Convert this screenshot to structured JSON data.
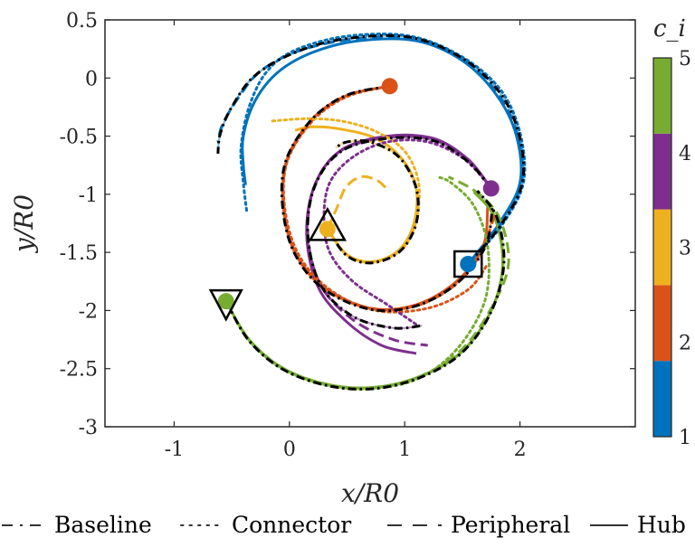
{
  "chart_data": {
    "type": "line",
    "xlabel": "x/R0",
    "ylabel": "y/R0",
    "xlim": [
      -1.6,
      3.0
    ],
    "ylim": [
      -3.0,
      0.5
    ],
    "x_ticks": [
      -1,
      0,
      1,
      2
    ],
    "y_ticks": [
      0.5,
      0,
      -0.5,
      -1,
      -1.5,
      -2,
      -2.5,
      -3
    ],
    "x_tick_labels": [
      "-1",
      "0",
      "1",
      "2"
    ],
    "y_tick_labels": [
      "0.5",
      "0",
      "-0.5",
      "-1",
      "-1.5",
      "-2",
      "-2.5",
      "-3"
    ],
    "colorbar": {
      "title": "c_i",
      "ticks": [
        1,
        2,
        3,
        4,
        5
      ],
      "tick_labels": [
        "1",
        "2",
        "3",
        "4",
        "5"
      ],
      "colors": [
        "#0072BD",
        "#D95319",
        "#EDB120",
        "#7E2F8E",
        "#77AC30"
      ]
    },
    "legend": {
      "placement": "bottom",
      "entries": [
        {
          "label": "Baseline",
          "style": "dashdot"
        },
        {
          "label": "Connector",
          "style": "dotted"
        },
        {
          "label": "Peripheral",
          "style": "dashed"
        },
        {
          "label": "Hub",
          "style": "solid"
        }
      ]
    },
    "start_markers": [
      {
        "c": 1,
        "x": 1.55,
        "y": -1.6
      },
      {
        "c": 2,
        "x": 0.87,
        "y": -0.07
      },
      {
        "c": 3,
        "x": 0.33,
        "y": -1.3
      },
      {
        "c": 4,
        "x": 1.75,
        "y": -0.95
      },
      {
        "c": 5,
        "x": -0.55,
        "y": -1.92
      }
    ],
    "reference_markers": [
      {
        "shape": "square",
        "x": 1.55,
        "y": -1.6
      },
      {
        "shape": "triangle-up",
        "x": 0.33,
        "y": -1.3
      },
      {
        "shape": "triangle-down",
        "x": -0.55,
        "y": -1.92
      }
    ],
    "series": [
      {
        "c": 1,
        "style": "solid",
        "points": [
          [
            1.55,
            -1.6
          ],
          [
            1.82,
            -1.25
          ],
          [
            2.0,
            -0.9
          ],
          [
            1.97,
            -0.5
          ],
          [
            1.8,
            -0.15
          ],
          [
            1.5,
            0.15
          ],
          [
            1.1,
            0.32
          ],
          [
            0.6,
            0.32
          ],
          [
            0.2,
            0.22
          ],
          [
            -0.1,
            0.05
          ],
          [
            -0.3,
            -0.2
          ],
          [
            -0.4,
            -0.5
          ],
          [
            -0.4,
            -0.75
          ],
          [
            -0.38,
            -0.92
          ]
        ]
      },
      {
        "c": 1,
        "style": "dashdot",
        "points": [
          [
            1.55,
            -1.6
          ],
          [
            1.83,
            -1.27
          ],
          [
            2.02,
            -0.9
          ],
          [
            1.99,
            -0.48
          ],
          [
            1.82,
            -0.12
          ],
          [
            1.5,
            0.17
          ],
          [
            1.05,
            0.35
          ],
          [
            0.5,
            0.34
          ],
          [
            0.05,
            0.22
          ],
          [
            -0.3,
            0.02
          ],
          [
            -0.5,
            -0.25
          ],
          [
            -0.6,
            -0.48
          ],
          [
            -0.62,
            -0.65
          ]
        ]
      },
      {
        "c": 1,
        "style": "dotted",
        "points": [
          [
            1.55,
            -1.6
          ],
          [
            1.84,
            -1.27
          ],
          [
            2.03,
            -0.9
          ],
          [
            2.0,
            -0.47
          ],
          [
            1.83,
            -0.1
          ],
          [
            1.5,
            0.18
          ],
          [
            1.05,
            0.36
          ],
          [
            0.5,
            0.36
          ],
          [
            0.05,
            0.24
          ],
          [
            -0.2,
            0.05
          ],
          [
            -0.35,
            -0.25
          ],
          [
            -0.42,
            -0.6
          ],
          [
            -0.4,
            -0.9
          ],
          [
            -0.37,
            -1.15
          ]
        ]
      },
      {
        "c": 1,
        "style": "dashed",
        "points": [
          [
            1.55,
            -1.6
          ],
          [
            1.83,
            -1.26
          ],
          [
            2.01,
            -0.9
          ],
          [
            1.98,
            -0.5
          ],
          [
            1.81,
            -0.14
          ],
          [
            1.5,
            0.16
          ],
          [
            1.1,
            0.33
          ],
          [
            0.6,
            0.34
          ],
          [
            0.1,
            0.24
          ],
          [
            -0.25,
            0.06
          ],
          [
            -0.45,
            -0.18
          ],
          [
            -0.58,
            -0.4
          ],
          [
            -0.62,
            -0.55
          ]
        ]
      },
      {
        "c": 2,
        "style": "solid",
        "points": [
          [
            0.87,
            -0.07
          ],
          [
            0.5,
            -0.15
          ],
          [
            0.2,
            -0.35
          ],
          [
            -0.02,
            -0.7
          ],
          [
            -0.05,
            -1.1
          ],
          [
            0.05,
            -1.5
          ],
          [
            0.3,
            -1.8
          ],
          [
            0.7,
            -1.98
          ],
          [
            1.1,
            -1.95
          ],
          [
            1.45,
            -1.75
          ],
          [
            1.68,
            -1.45
          ],
          [
            1.72,
            -1.1
          ]
        ]
      },
      {
        "c": 2,
        "style": "dashdot",
        "points": [
          [
            0.87,
            -0.07
          ],
          [
            0.49,
            -0.15
          ],
          [
            0.19,
            -0.36
          ],
          [
            -0.03,
            -0.71
          ],
          [
            -0.06,
            -1.1
          ],
          [
            0.04,
            -1.5
          ],
          [
            0.29,
            -1.81
          ],
          [
            0.7,
            -1.99
          ],
          [
            1.1,
            -1.96
          ],
          [
            1.46,
            -1.76
          ],
          [
            1.7,
            -1.45
          ],
          [
            1.76,
            -1.12
          ]
        ]
      },
      {
        "c": 2,
        "style": "dotted",
        "points": [
          [
            0.87,
            -0.07
          ],
          [
            0.5,
            -0.16
          ],
          [
            0.2,
            -0.37
          ],
          [
            -0.02,
            -0.72
          ],
          [
            -0.04,
            -1.12
          ],
          [
            0.08,
            -1.52
          ],
          [
            0.35,
            -1.82
          ],
          [
            0.75,
            -2.0
          ],
          [
            1.2,
            -1.98
          ],
          [
            1.55,
            -1.82
          ],
          [
            1.72,
            -1.6
          ]
        ]
      },
      {
        "c": 2,
        "style": "dashed",
        "points": [
          [
            0.87,
            -0.07
          ],
          [
            0.5,
            -0.15
          ],
          [
            0.2,
            -0.36
          ],
          [
            -0.02,
            -0.71
          ],
          [
            -0.05,
            -1.11
          ],
          [
            0.05,
            -1.5
          ],
          [
            0.3,
            -1.8
          ],
          [
            0.7,
            -1.98
          ],
          [
            1.1,
            -1.96
          ],
          [
            1.45,
            -1.77
          ],
          [
            1.66,
            -1.5
          ],
          [
            1.78,
            -1.18
          ]
        ]
      },
      {
        "c": 3,
        "style": "solid",
        "points": [
          [
            0.33,
            -1.3
          ],
          [
            0.5,
            -1.52
          ],
          [
            0.72,
            -1.58
          ],
          [
            0.95,
            -1.48
          ],
          [
            1.08,
            -1.25
          ],
          [
            1.1,
            -0.95
          ],
          [
            0.98,
            -0.7
          ],
          [
            0.75,
            -0.52
          ],
          [
            0.45,
            -0.44
          ],
          [
            0.2,
            -0.42
          ],
          [
            0.05,
            -0.45
          ]
        ]
      },
      {
        "c": 3,
        "style": "dashdot",
        "points": [
          [
            0.33,
            -1.3
          ],
          [
            0.5,
            -1.53
          ],
          [
            0.72,
            -1.59
          ],
          [
            0.96,
            -1.49
          ],
          [
            1.1,
            -1.25
          ],
          [
            1.1,
            -0.95
          ],
          [
            0.95,
            -0.68
          ],
          [
            0.7,
            -0.55
          ],
          [
            0.5,
            -0.55
          ],
          [
            0.4,
            -0.6
          ]
        ]
      },
      {
        "c": 3,
        "style": "dotted",
        "points": [
          [
            0.33,
            -1.3
          ],
          [
            0.5,
            -1.52
          ],
          [
            0.73,
            -1.58
          ],
          [
            0.98,
            -1.47
          ],
          [
            1.1,
            -1.22
          ],
          [
            1.12,
            -0.9
          ],
          [
            1.0,
            -0.63
          ],
          [
            0.75,
            -0.46
          ],
          [
            0.45,
            -0.37
          ],
          [
            0.15,
            -0.35
          ],
          [
            -0.15,
            -0.37
          ]
        ]
      },
      {
        "c": 3,
        "style": "dashed",
        "points": [
          [
            0.33,
            -1.3
          ],
          [
            0.41,
            -1.12
          ],
          [
            0.49,
            -0.94
          ],
          [
            0.62,
            -0.85
          ],
          [
            0.76,
            -0.88
          ],
          [
            0.85,
            -0.96
          ]
        ]
      },
      {
        "c": 4,
        "style": "solid",
        "points": [
          [
            1.75,
            -0.95
          ],
          [
            1.55,
            -0.7
          ],
          [
            1.25,
            -0.52
          ],
          [
            0.85,
            -0.5
          ],
          [
            0.45,
            -0.62
          ],
          [
            0.22,
            -0.92
          ],
          [
            0.15,
            -1.35
          ],
          [
            0.25,
            -1.8
          ],
          [
            0.5,
            -2.1
          ],
          [
            0.8,
            -2.3
          ],
          [
            1.1,
            -2.37
          ]
        ]
      },
      {
        "c": 4,
        "style": "dashdot",
        "points": [
          [
            1.75,
            -0.95
          ],
          [
            1.55,
            -0.72
          ],
          [
            1.25,
            -0.54
          ],
          [
            0.85,
            -0.52
          ],
          [
            0.45,
            -0.63
          ],
          [
            0.22,
            -0.93
          ],
          [
            0.16,
            -1.35
          ],
          [
            0.27,
            -1.78
          ],
          [
            0.55,
            -2.05
          ],
          [
            0.9,
            -2.15
          ],
          [
            1.15,
            -2.13
          ]
        ]
      },
      {
        "c": 4,
        "style": "dotted",
        "points": [
          [
            1.75,
            -0.95
          ],
          [
            1.52,
            -0.7
          ],
          [
            1.2,
            -0.55
          ],
          [
            0.85,
            -0.55
          ],
          [
            0.55,
            -0.68
          ],
          [
            0.35,
            -0.9
          ],
          [
            0.3,
            -1.2
          ],
          [
            0.35,
            -1.5
          ],
          [
            0.55,
            -1.75
          ],
          [
            0.85,
            -1.95
          ],
          [
            1.1,
            -2.12
          ]
        ]
      },
      {
        "c": 4,
        "style": "dashed",
        "points": [
          [
            1.75,
            -0.95
          ],
          [
            1.55,
            -0.71
          ],
          [
            1.25,
            -0.53
          ],
          [
            0.85,
            -0.51
          ],
          [
            0.45,
            -0.62
          ],
          [
            0.22,
            -0.92
          ],
          [
            0.16,
            -1.35
          ],
          [
            0.27,
            -1.78
          ],
          [
            0.55,
            -2.08
          ],
          [
            0.9,
            -2.25
          ],
          [
            1.2,
            -2.3
          ]
        ]
      },
      {
        "c": 5,
        "style": "solid",
        "points": [
          [
            -0.55,
            -1.92
          ],
          [
            -0.35,
            -2.25
          ],
          [
            -0.05,
            -2.5
          ],
          [
            0.35,
            -2.64
          ],
          [
            0.75,
            -2.66
          ],
          [
            1.15,
            -2.56
          ],
          [
            1.5,
            -2.35
          ],
          [
            1.75,
            -2.0
          ],
          [
            1.85,
            -1.6
          ],
          [
            1.78,
            -1.2
          ],
          [
            1.6,
            -0.98
          ]
        ]
      },
      {
        "c": 5,
        "style": "dashdot",
        "points": [
          [
            -0.55,
            -1.92
          ],
          [
            -0.35,
            -2.26
          ],
          [
            -0.05,
            -2.51
          ],
          [
            0.35,
            -2.65
          ],
          [
            0.75,
            -2.67
          ],
          [
            1.15,
            -2.57
          ],
          [
            1.5,
            -2.36
          ],
          [
            1.75,
            -2.01
          ],
          [
            1.86,
            -1.6
          ],
          [
            1.8,
            -1.2
          ],
          [
            1.63,
            -0.97
          ]
        ]
      },
      {
        "c": 5,
        "style": "dotted",
        "points": [
          [
            -0.55,
            -1.92
          ],
          [
            -0.35,
            -2.26
          ],
          [
            -0.05,
            -2.51
          ],
          [
            0.35,
            -2.65
          ],
          [
            0.75,
            -2.67
          ],
          [
            1.15,
            -2.57
          ],
          [
            1.48,
            -2.3
          ],
          [
            1.7,
            -1.9
          ],
          [
            1.72,
            -1.45
          ],
          [
            1.6,
            -1.1
          ],
          [
            1.4,
            -0.9
          ],
          [
            1.28,
            -0.85
          ]
        ]
      },
      {
        "c": 5,
        "style": "dashed",
        "points": [
          [
            -0.55,
            -1.92
          ],
          [
            -0.35,
            -2.25
          ],
          [
            -0.05,
            -2.5
          ],
          [
            0.35,
            -2.64
          ],
          [
            0.75,
            -2.66
          ],
          [
            1.15,
            -2.56
          ],
          [
            1.5,
            -2.33
          ],
          [
            1.75,
            -1.98
          ],
          [
            1.9,
            -1.6
          ],
          [
            1.82,
            -1.2
          ],
          [
            1.62,
            -0.98
          ],
          [
            1.38,
            -0.85
          ]
        ]
      }
    ]
  }
}
